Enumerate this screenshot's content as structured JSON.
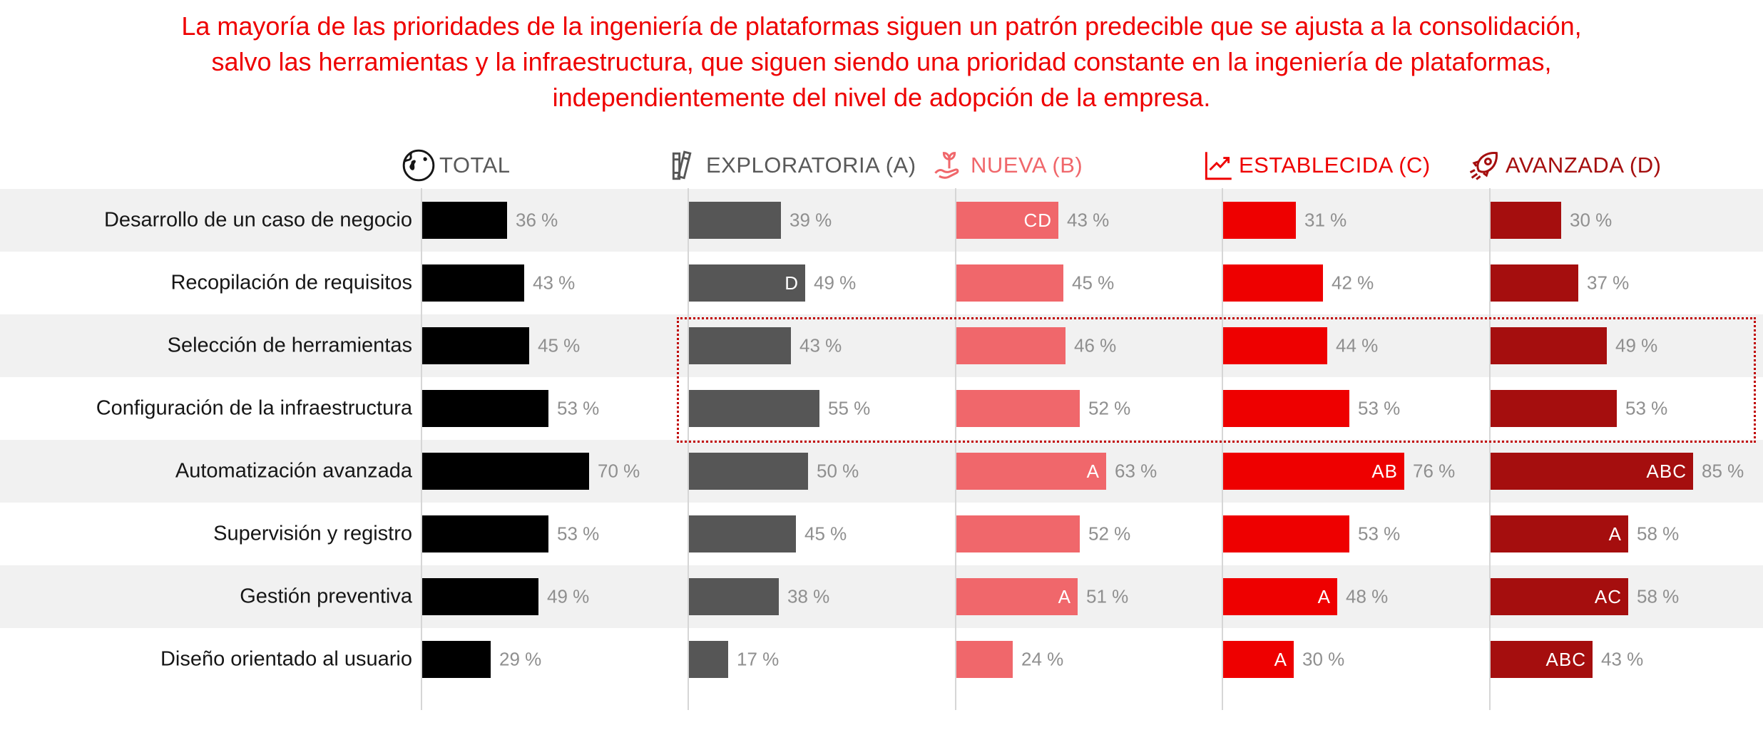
{
  "title": {
    "lines": [
      "La mayoría de las prioridades de la ingeniería de plataformas siguen un patrón predecible que se ajusta a la consolidación,",
      "salvo las herramientas y la infraestructura, que siguen siendo una prioridad constante en la ingeniería de plataformas,",
      "independientemente del nivel de adopción de la empresa."
    ]
  },
  "chart_data": {
    "type": "bar",
    "orientation": "horizontal",
    "unit": "%",
    "value_suffix": " %",
    "xlim": [
      0,
      100
    ],
    "grid": false,
    "categories": [
      "Desarrollo de un caso de negocio",
      "Recopilación de requisitos",
      "Selección de herramientas",
      "Configuración de la infraestructura",
      "Automatización avanzada",
      "Supervisión y registro",
      "Gestión preventiva",
      "Diseño orientado al usuario"
    ],
    "series": [
      {
        "name": "TOTAL",
        "label": "TOTAL",
        "icon": "globe-icon",
        "color": "#000000",
        "header_color": "#595959",
        "values": [
          36,
          43,
          45,
          53,
          70,
          53,
          49,
          29
        ],
        "sig": [
          "",
          "",
          "",
          "",
          "",
          "",
          "",
          ""
        ]
      },
      {
        "name": "EXPLORATORIA (A)",
        "label": "EXPLORATORIA (A)",
        "icon": "books-icon",
        "color": "#565656",
        "header_color": "#595959",
        "values": [
          39,
          49,
          43,
          55,
          50,
          45,
          38,
          17
        ],
        "sig": [
          "",
          "D",
          "",
          "",
          "",
          "",
          "",
          ""
        ]
      },
      {
        "name": "NUEVA (B)",
        "label": "NUEVA (B)",
        "icon": "seedling-hand-icon",
        "color": "#f0676b",
        "header_color": "#f0676b",
        "values": [
          43,
          45,
          46,
          52,
          63,
          52,
          51,
          24
        ],
        "sig": [
          "CD",
          "",
          "",
          "",
          "A",
          "",
          "A",
          ""
        ]
      },
      {
        "name": "ESTABLECIDA (C)",
        "label": "ESTABLECIDA (C)",
        "icon": "line-chart-icon",
        "color": "#ee0000",
        "header_color": "#ee0000",
        "values": [
          31,
          42,
          44,
          53,
          76,
          53,
          48,
          30
        ],
        "sig": [
          "",
          "",
          "",
          "",
          "AB",
          "",
          "A",
          "A"
        ]
      },
      {
        "name": "AVANZADA (D)",
        "label": "AVANZADA (D)",
        "icon": "rocket-icon",
        "color": "#a50e0e",
        "header_color": "#a50e0e",
        "values": [
          30,
          37,
          49,
          53,
          85,
          58,
          58,
          43
        ],
        "sig": [
          "",
          "",
          "",
          "",
          "ABC",
          "A",
          "AC",
          "ABC"
        ]
      }
    ],
    "annotations": {
      "highlighted_categories": [
        "Selección de herramientas",
        "Configuración de la infraestructura"
      ],
      "highlight_style": "red dotted rectangle"
    }
  },
  "colors": {
    "title": "#ee0000",
    "row_stripe": "#f1f1f1",
    "axis_line": "#d6d6d6",
    "value_label": "#8f8f8f",
    "category_label": "#161616",
    "dotted_border": "#c00000"
  }
}
